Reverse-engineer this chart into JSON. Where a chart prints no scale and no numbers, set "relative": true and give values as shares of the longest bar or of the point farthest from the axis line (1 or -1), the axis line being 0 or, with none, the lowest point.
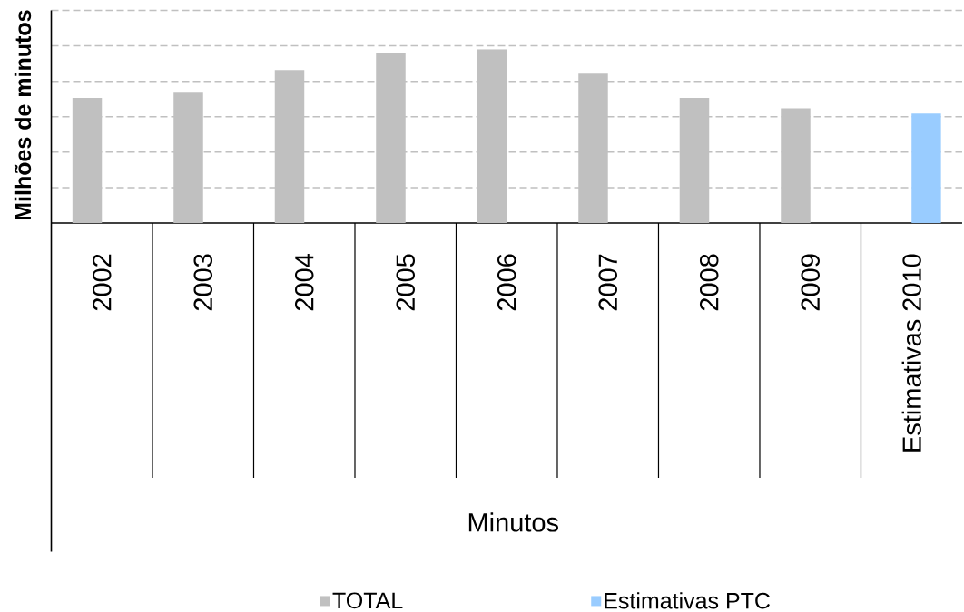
{
  "chart_data": {
    "type": "bar",
    "xlabel": "Minutos",
    "ylabel": "Milhões de minutos",
    "categories": [
      "2002",
      "2003",
      "2004",
      "2005",
      "2006",
      "2007",
      "2008",
      "2009",
      "Estimativas 2010"
    ],
    "series": [
      {
        "name": "TOTAL",
        "color": "#c0c0c0",
        "values": [
          0.72,
          0.75,
          0.88,
          0.98,
          1,
          0.86,
          0.72,
          0.66,
          null
        ]
      },
      {
        "name": "Estimativas PTC",
        "color": "#99ccff",
        "values": [
          null,
          null,
          null,
          null,
          null,
          null,
          null,
          null,
          0.63
        ]
      }
    ],
    "relative": true,
    "grid": "y",
    "legend": "bottom"
  }
}
